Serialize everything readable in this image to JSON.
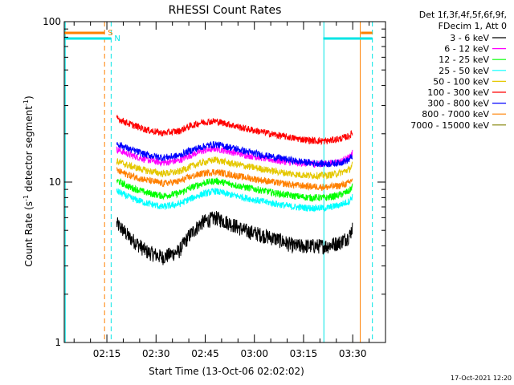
{
  "chart_data": {
    "type": "line",
    "title": "RHESSI Count Rates",
    "xlabel": "Start Time (13-Oct-06 02:02:02)",
    "ylabel_main": "Count Rate (s",
    "ylabel_sup1": "-1",
    "ylabel_mid": " detector segment",
    "ylabel_sup2": "-1",
    "ylabel_end": ")",
    "y_scale": "log",
    "ylim": [
      1,
      100
    ],
    "x_unit": "minutes after 02:02:02",
    "xlim_min": [
      0,
      98
    ],
    "x_ticks": [
      {
        "min": 13,
        "label": "02:15"
      },
      {
        "min": 28,
        "label": "02:30"
      },
      {
        "min": 43,
        "label": "02:45"
      },
      {
        "min": 58,
        "label": "03:00"
      },
      {
        "min": 73,
        "label": "03:15"
      },
      {
        "min": 88,
        "label": "03:30"
      }
    ],
    "y_ticks": [
      {
        "value": 1,
        "label": "1"
      },
      {
        "value": 10,
        "label": "10"
      },
      {
        "value": 100,
        "label": "100"
      }
    ],
    "legend_header": [
      "Det 1f,3f,4f,5f,6f,9f,",
      "FDecim 1, Att 0"
    ],
    "series": [
      {
        "name": "3 - 6 keV",
        "color": "#000000",
        "t": [
          16,
          20,
          25,
          30,
          35,
          38,
          42,
          46,
          50,
          55,
          60,
          65,
          70,
          75,
          80,
          84,
          87,
          88
        ],
        "values": [
          5.5,
          4.5,
          3.7,
          3.4,
          3.7,
          4.6,
          5.6,
          6.0,
          5.6,
          5.0,
          4.7,
          4.4,
          4.0,
          4.0,
          4.0,
          4.2,
          4.6,
          5.3
        ]
      },
      {
        "name": "6 - 12 keV",
        "color": "#ff00ff",
        "t": [
          16,
          20,
          25,
          30,
          35,
          38,
          42,
          46,
          50,
          55,
          60,
          65,
          70,
          75,
          80,
          84,
          87,
          88
        ],
        "values": [
          16.0,
          14.8,
          13.8,
          13.2,
          13.6,
          14.6,
          15.6,
          16.2,
          15.6,
          14.8,
          14.2,
          13.6,
          13.2,
          13.0,
          13.0,
          13.4,
          14.2,
          15.2
        ]
      },
      {
        "name": "12 - 25 keV",
        "color": "#00ff00",
        "t": [
          16,
          20,
          25,
          30,
          35,
          38,
          42,
          46,
          50,
          55,
          60,
          65,
          70,
          75,
          80,
          84,
          87,
          88
        ],
        "values": [
          10.2,
          9.3,
          8.6,
          8.2,
          8.5,
          9.1,
          9.8,
          10.2,
          9.8,
          9.3,
          8.9,
          8.5,
          8.2,
          8.0,
          8.0,
          8.3,
          8.8,
          9.5
        ]
      },
      {
        "name": "25 - 50 keV",
        "color": "#00ffff",
        "t": [
          16,
          20,
          25,
          30,
          35,
          38,
          42,
          46,
          50,
          55,
          60,
          65,
          70,
          75,
          80,
          84,
          87,
          88
        ],
        "values": [
          8.8,
          8.0,
          7.4,
          7.0,
          7.3,
          7.8,
          8.4,
          8.8,
          8.4,
          8.0,
          7.6,
          7.3,
          7.0,
          6.9,
          6.9,
          7.2,
          7.6,
          8.2
        ]
      },
      {
        "name": "50 - 100 keV",
        "color": "#e5c800",
        "t": [
          16,
          20,
          25,
          30,
          35,
          38,
          42,
          46,
          50,
          55,
          60,
          65,
          70,
          75,
          80,
          84,
          87,
          88
        ],
        "values": [
          13.5,
          12.6,
          11.8,
          11.3,
          11.6,
          12.4,
          13.2,
          13.8,
          13.2,
          12.6,
          12.1,
          11.6,
          11.2,
          11.0,
          11.0,
          11.4,
          12.0,
          12.9
        ]
      },
      {
        "name": "100 - 300 keV",
        "color": "#ff0000",
        "t": [
          16,
          20,
          25,
          30,
          35,
          38,
          42,
          46,
          50,
          55,
          60,
          65,
          70,
          75,
          80,
          84,
          87,
          88
        ],
        "values": [
          25.0,
          23.0,
          21.2,
          20.2,
          20.8,
          22.2,
          23.6,
          24.0,
          23.0,
          21.6,
          20.6,
          19.6,
          18.8,
          18.2,
          18.0,
          18.6,
          19.4,
          20.4
        ]
      },
      {
        "name": "300 - 800 keV",
        "color": "#0000ff",
        "t": [
          16,
          20,
          25,
          30,
          35,
          38,
          42,
          46,
          50,
          55,
          60,
          65,
          70,
          75,
          80,
          84,
          87,
          88
        ],
        "values": [
          17.4,
          16.0,
          14.8,
          14.2,
          14.6,
          15.6,
          16.6,
          17.2,
          16.6,
          15.6,
          14.8,
          14.2,
          13.6,
          13.2,
          13.0,
          13.2,
          13.8,
          14.8
        ]
      },
      {
        "name": "800 - 7000 keV",
        "color": "#ff8000",
        "t": [
          16,
          20,
          25,
          30,
          35,
          38,
          42,
          46,
          50,
          55,
          60,
          65,
          70,
          75,
          80,
          84,
          87,
          88
        ],
        "values": [
          11.8,
          11.0,
          10.3,
          9.8,
          10.1,
          10.7,
          11.3,
          11.6,
          11.2,
          10.7,
          10.3,
          9.9,
          9.6,
          9.4,
          9.3,
          9.5,
          9.9,
          10.6
        ]
      },
      {
        "name": "7000 - 15000 keV",
        "color": "#808000",
        "t": [],
        "values": []
      }
    ],
    "indicators": {
      "saa_label": "S",
      "night_label": "N",
      "saa_color": "#ff8000",
      "night_color": "#00e5e5",
      "saa_bars": [
        {
          "start": 0,
          "end": 12.3
        },
        {
          "start": 90.5,
          "end": 94
        }
      ],
      "night_bars": [
        {
          "start": 0,
          "end": 14.3
        },
        {
          "start": 79,
          "end": 94
        }
      ],
      "saa_solid_lines": [
        90.3
      ],
      "saa_dashed_lines": [
        12.3
      ],
      "night_solid_lines": [
        0.3,
        79.2
      ],
      "night_dashed_lines": [
        14.3,
        94
      ]
    },
    "timestamp": "17-Oct-2021 12:20"
  }
}
